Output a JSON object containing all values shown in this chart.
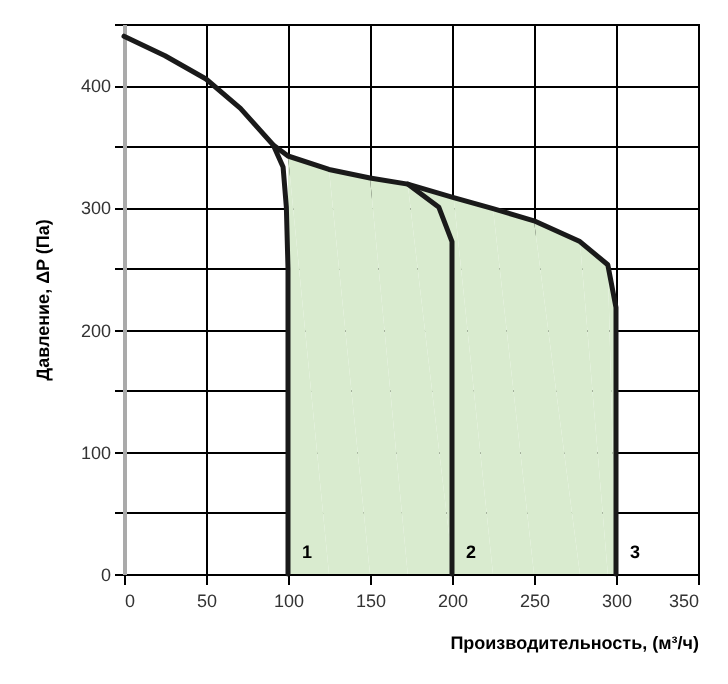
{
  "chart_data": {
    "type": "line",
    "xlabel": "Производительность, (м³/ч)",
    "ylabel": "Давление, ΔP (Па)",
    "xlim": [
      0,
      350
    ],
    "xticks": [
      0,
      50,
      100,
      150,
      200,
      250,
      300,
      350
    ],
    "ylim": [
      0,
      450
    ],
    "yticks": [
      0,
      {
        "value": 50,
        "label": null
      },
      100,
      {
        "value": 150,
        "label": null
      },
      200,
      {
        "value": 250,
        "label": null
      },
      300,
      {
        "value": 350,
        "label": null
      },
      400,
      {
        "value": 450,
        "label": null
      }
    ],
    "grid": true,
    "marker": "none",
    "line_style": "solid",
    "series": [
      {
        "type": "area",
        "color": "#d9ebcf",
        "x": [
          100,
          125,
          150,
          173,
          201,
          225,
          250,
          278,
          295,
          300
        ],
        "values": [
          342,
          331,
          324,
          319,
          308,
          299,
          289,
          272,
          253,
          218
        ]
      },
      {
        "name": "3",
        "color": "#1a1a1a",
        "x": [
          0,
          25,
          50,
          71,
          91,
          100,
          125,
          150,
          173,
          201,
          225,
          250,
          278,
          295,
          300,
          300
        ],
        "values": [
          440,
          424,
          405,
          381,
          351,
          342,
          331,
          324,
          319,
          308,
          299,
          289,
          272,
          253,
          218,
          0
        ]
      },
      {
        "name": "1",
        "color": "#1a1a1a",
        "x": [
          91,
          97,
          99,
          100,
          100
        ],
        "values": [
          351,
          333,
          300,
          250,
          0
        ]
      },
      {
        "name": "2",
        "color": "#1a1a1a",
        "x": [
          173,
          192,
          200,
          200,
          200
        ],
        "values": [
          319,
          300,
          272,
          229,
          0
        ]
      }
    ]
  }
}
